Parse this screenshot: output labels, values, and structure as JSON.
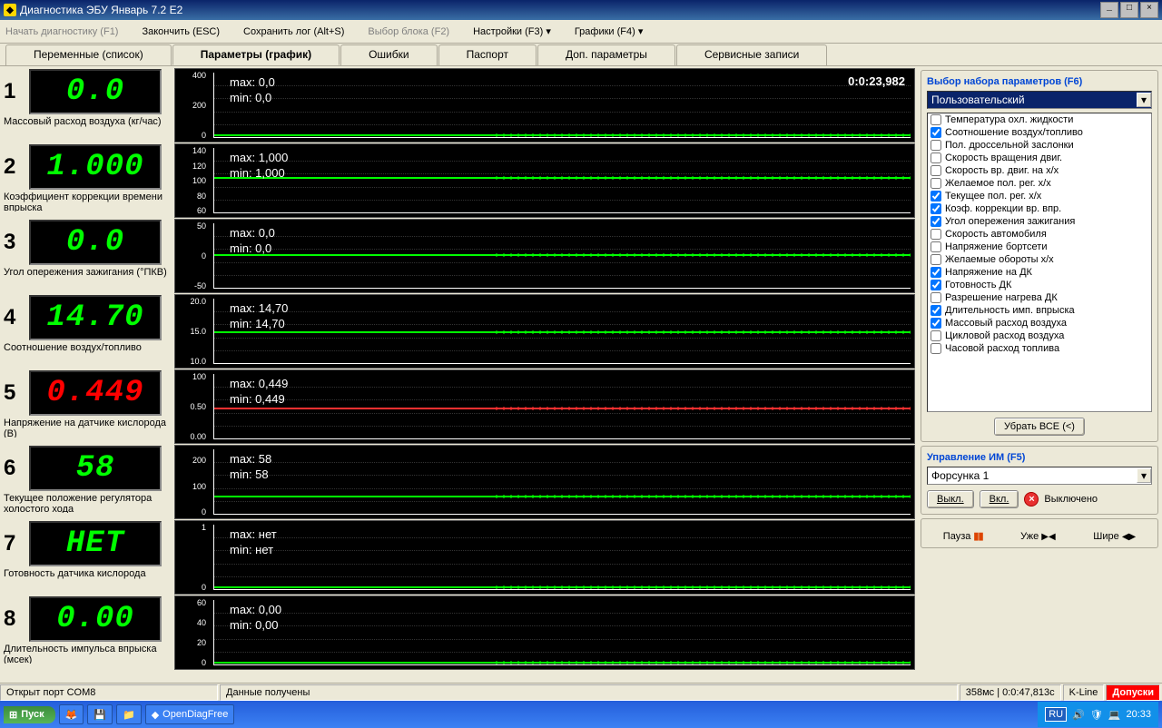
{
  "window": {
    "title": "Диагностика ЭБУ Январь 7.2 Е2",
    "minimize": "_",
    "maximize": "□",
    "close": "×"
  },
  "menubar": [
    {
      "label": "Начать диагностику (F1)",
      "active": false
    },
    {
      "label": "Закончить (ESC)",
      "active": true
    },
    {
      "label": "Сохранить лог (Alt+S)",
      "active": true
    },
    {
      "label": "Выбор блока (F2)",
      "active": false
    },
    {
      "label": "Настройки (F3) ▾",
      "active": true
    },
    {
      "label": "Графики (F4) ▾",
      "active": true
    }
  ],
  "tabs": [
    {
      "label": "Переменные (список)"
    },
    {
      "label": "Параметры (график)",
      "active": true
    },
    {
      "label": "Ошибки"
    },
    {
      "label": "Паспорт"
    },
    {
      "label": "Доп. параметры"
    },
    {
      "label": "Сервисные записи"
    }
  ],
  "timestamp": "0:0:23,982",
  "params": [
    {
      "n": "1",
      "value": "0.0",
      "color": "#00ff00",
      "label": "Массовый расход воздуха (кг/час)",
      "max": "max: 0,0",
      "min": "min: 0,0",
      "yticks": [
        "400",
        "",
        "200",
        "",
        "0"
      ],
      "line_y": 96,
      "line_color": "#00ff00"
    },
    {
      "n": "2",
      "value": "1.000",
      "color": "#00ff00",
      "label": "Коэффициент коррекции времени впрыска",
      "max": "max: 1,000",
      "min": "min: 1,000",
      "yticks": [
        "140",
        "120",
        "100",
        "80",
        "60"
      ],
      "line_y": 45,
      "line_color": "#00ff00"
    },
    {
      "n": "3",
      "value": "0.0",
      "color": "#00ff00",
      "label": "Угол опережения зажигания (°ПКВ)",
      "max": "max: 0,0",
      "min": "min: 0,0",
      "yticks": [
        "50",
        "",
        "0",
        "",
        "-50"
      ],
      "line_y": 48,
      "line_color": "#00ff00"
    },
    {
      "n": "4",
      "value": "14.70",
      "color": "#00ff00",
      "label": "Соотношение воздух/топливо",
      "max": "max: 14,70",
      "min": "min: 14,70",
      "yticks": [
        "20.0",
        "",
        "15.0",
        "",
        "10.0"
      ],
      "line_y": 50,
      "line_color": "#00ff00"
    },
    {
      "n": "5",
      "value": "0.449",
      "color": "#ff0000",
      "label": "Напряжение на датчике кислорода (В)",
      "max": "max: 0,449",
      "min": "min: 0,449",
      "yticks": [
        "100",
        "",
        "0.50",
        "",
        "0.00"
      ],
      "line_y": 52,
      "line_color": "#ff3030"
    },
    {
      "n": "6",
      "value": "58",
      "color": "#00ff00",
      "label": "Текущее положение регулятора холостого хода",
      "max": "max: 58",
      "min": "min: 58",
      "yticks": [
        "",
        "200",
        "",
        "100",
        "",
        "0"
      ],
      "line_y": 72,
      "line_color": "#00ff00"
    },
    {
      "n": "7",
      "value": "НЕТ",
      "color": "#00ff00",
      "label": "Готовность датчика кислорода",
      "max": "max: нет",
      "min": "min: нет",
      "yticks": [
        "1",
        "",
        "",
        "",
        "0"
      ],
      "line_y": 96,
      "line_color": "#00ff00"
    },
    {
      "n": "8",
      "value": "0.00",
      "color": "#00ff00",
      "label": "Длительность импульса впрыска (мсек)",
      "max": "max: 0,00",
      "min": "min: 0,00",
      "yticks": [
        "60",
        "40",
        "20",
        "0"
      ],
      "line_y": 96,
      "line_color": "#00ff00"
    }
  ],
  "side": {
    "param_select_title": "Выбор набора параметров (F6)",
    "preset": "Пользовательский",
    "checks": [
      {
        "c": false,
        "t": "Температура охл. жидкости"
      },
      {
        "c": true,
        "t": "Соотношение воздух/топливо"
      },
      {
        "c": false,
        "t": "Пол. дроссельной заслонки"
      },
      {
        "c": false,
        "t": "Скорость вращения двиг."
      },
      {
        "c": false,
        "t": "Скорость вр. двиг. на х/х"
      },
      {
        "c": false,
        "t": "Желаемое пол. рег. х/х"
      },
      {
        "c": true,
        "t": "Текущее пол. рег. х/х"
      },
      {
        "c": true,
        "t": "Коэф. коррекции вр. впр."
      },
      {
        "c": true,
        "t": "Угол опережения зажигания"
      },
      {
        "c": false,
        "t": "Скорость автомобиля"
      },
      {
        "c": false,
        "t": "Напряжение бортсети"
      },
      {
        "c": false,
        "t": "Желаемые обороты х/х"
      },
      {
        "c": true,
        "t": "Напряжение на ДК"
      },
      {
        "c": true,
        "t": "Готовность ДК"
      },
      {
        "c": false,
        "t": "Разрешение нагрева ДК"
      },
      {
        "c": true,
        "t": "Длительность имп. впрыска"
      },
      {
        "c": true,
        "t": "Массовый расход воздуха"
      },
      {
        "c": false,
        "t": "Цикловой расход воздуха"
      },
      {
        "c": false,
        "t": "Часовой расход топлива"
      }
    ],
    "clear_all": "Убрать ВСЕ (<)",
    "control_title": "Управление ИМ (F5)",
    "actuator": "Форсунка 1",
    "off_btn": "Выкл.",
    "on_btn": "Вкл.",
    "state": "Выключено",
    "pause": "Пауза",
    "narrow": "Уже",
    "wider": "Шире"
  },
  "statusbar": {
    "port": "Открыт порт COM8",
    "data": "Данные получены",
    "timing": "358мс | 0:0:47,813с",
    "kline": "K-Line",
    "tolerances": "Допуски"
  },
  "taskbar": {
    "start": "Пуск",
    "app": "OpenDiagFree",
    "lang": "RU",
    "clock": "20:33"
  }
}
